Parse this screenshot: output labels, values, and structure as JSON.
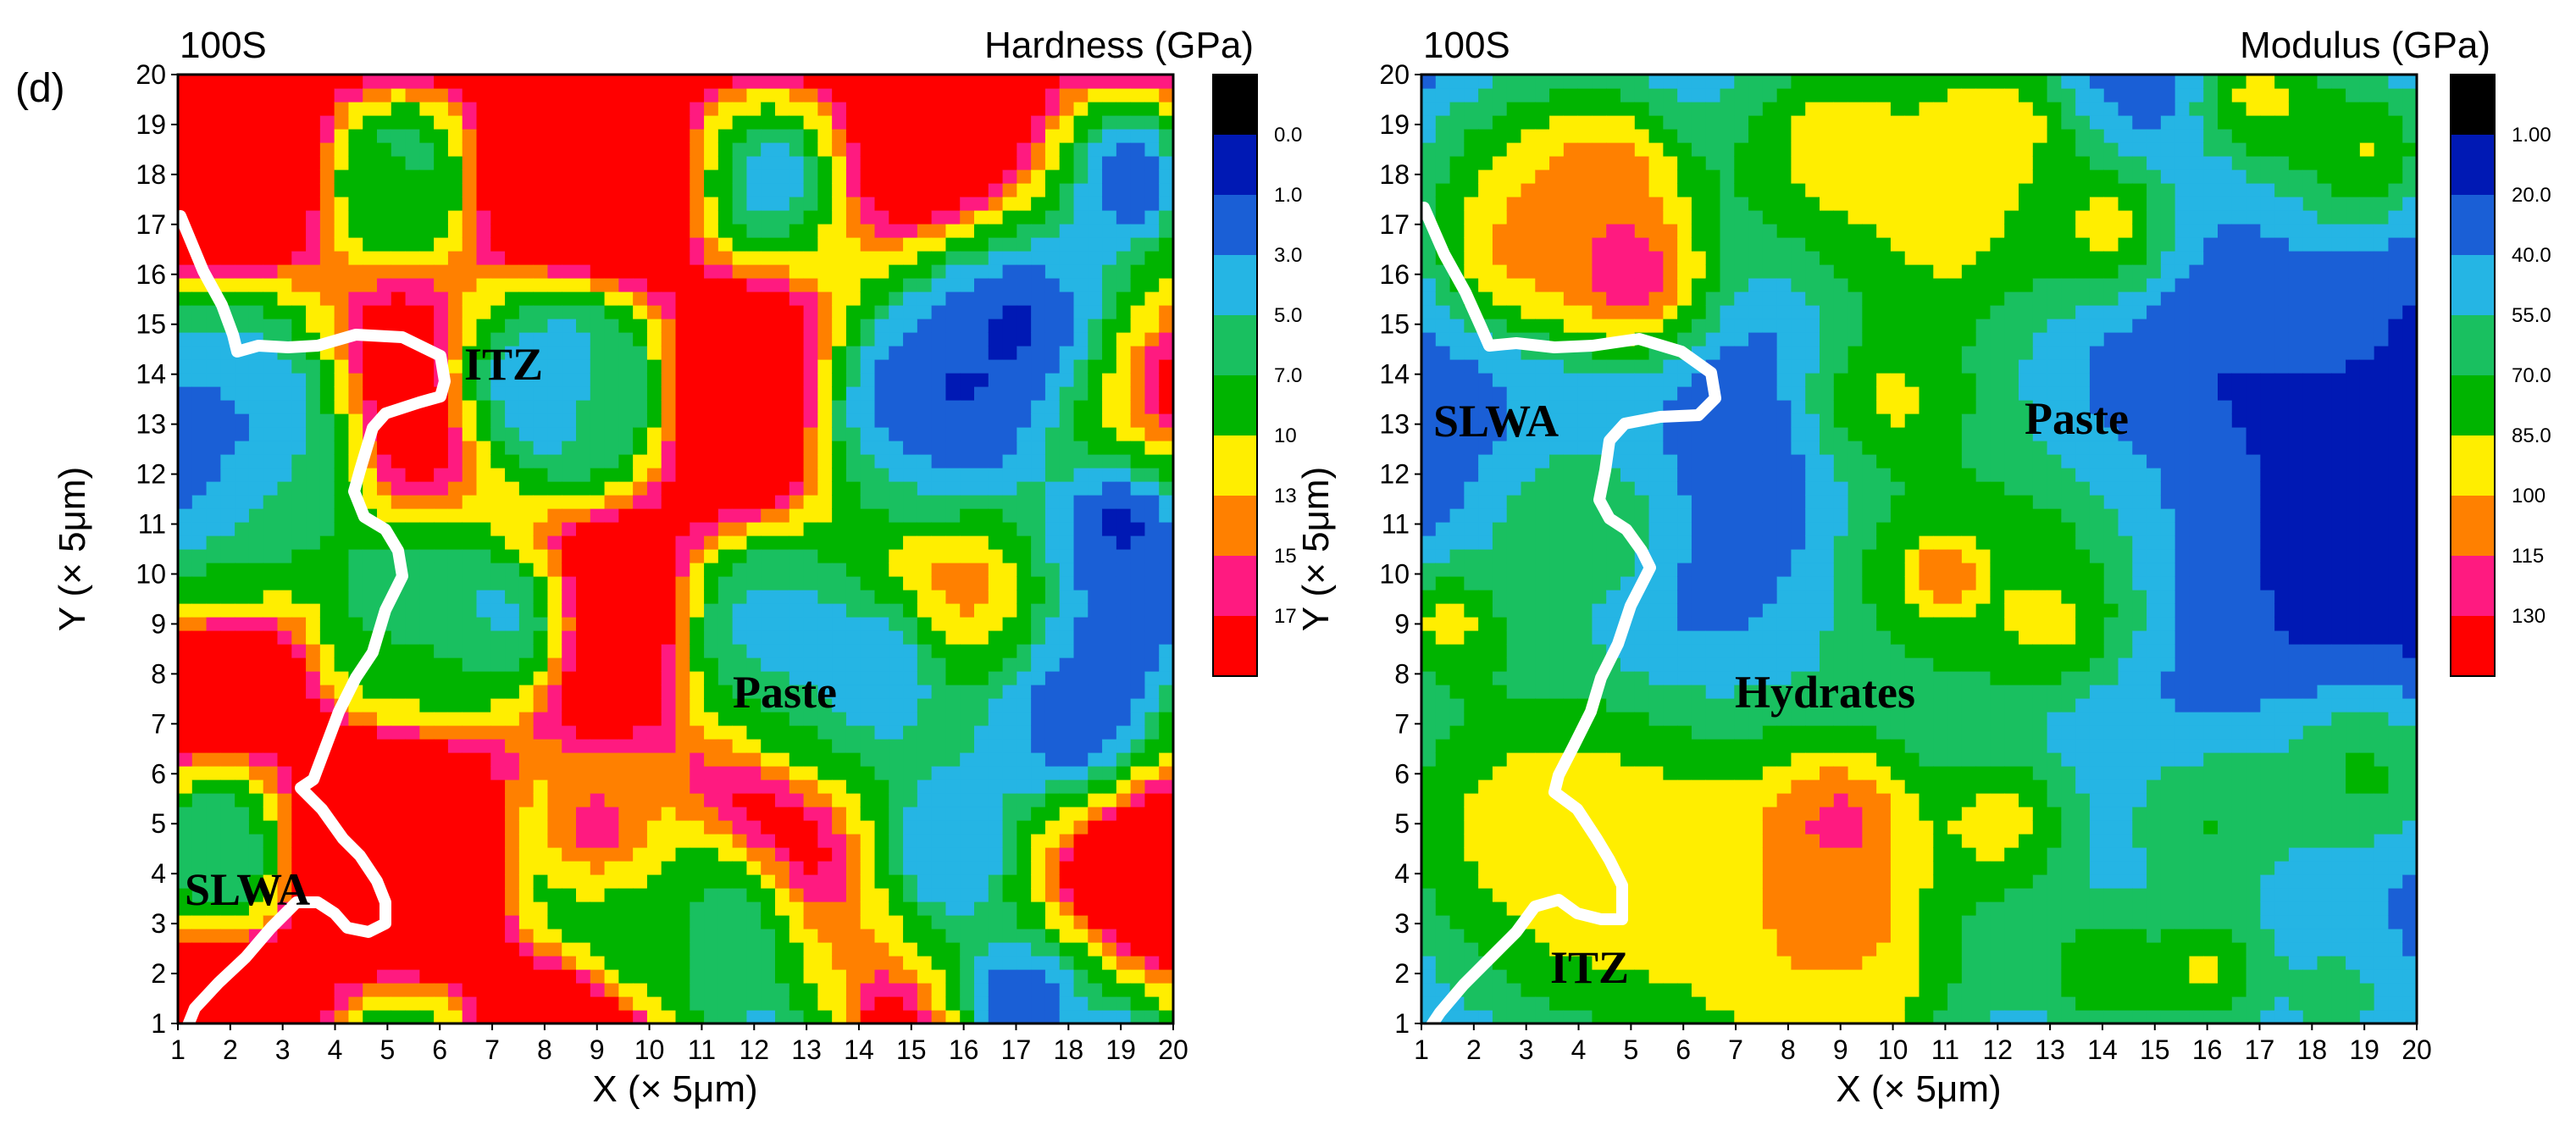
{
  "figure": {
    "panel_label": "(d)"
  },
  "chart_data": [
    {
      "type": "heatmap",
      "subtype": "filled-contour",
      "sample": "100S",
      "title": "Hardness (GPa)",
      "xlabel": "X (× 5μm)",
      "ylabel": "Y (× 5μm)",
      "xlim": [
        1,
        20
      ],
      "ylim": [
        1,
        20
      ],
      "x_ticks": [
        "1",
        "2",
        "3",
        "4",
        "5",
        "6",
        "7",
        "8",
        "9",
        "10",
        "11",
        "12",
        "13",
        "14",
        "15",
        "16",
        "17",
        "18",
        "19",
        "20"
      ],
      "y_ticks": [
        "1",
        "2",
        "3",
        "4",
        "5",
        "6",
        "7",
        "8",
        "9",
        "10",
        "11",
        "12",
        "13",
        "14",
        "15",
        "16",
        "17",
        "18",
        "19",
        "20"
      ],
      "colorbar": {
        "labels": [
          "0.0",
          "1.0",
          "3.0",
          "5.0",
          "7.0",
          "10",
          "13",
          "15",
          "17"
        ],
        "colors": [
          "#000000",
          "#0019b4",
          "#1a5fd6",
          "#25b5e4",
          "#19c060",
          "#00b400",
          "#ffee00",
          "#ff8000",
          "#ff1a80",
          "#ff0000"
        ]
      },
      "thresholds": [
        0,
        1,
        3,
        5,
        7,
        10,
        13,
        15,
        17
      ],
      "annotations": [
        "ITZ",
        "Paste",
        "SLWA"
      ],
      "boundary_line": "white",
      "grid": false
    },
    {
      "type": "heatmap",
      "subtype": "filled-contour",
      "sample": "100S",
      "title": "Modulus (GPa)",
      "xlabel": "X (× 5μm)",
      "ylabel": "Y (× 5μm)",
      "xlim": [
        1,
        20
      ],
      "ylim": [
        1,
        20
      ],
      "x_ticks": [
        "1",
        "2",
        "3",
        "4",
        "5",
        "6",
        "7",
        "8",
        "9",
        "10",
        "11",
        "12",
        "13",
        "14",
        "15",
        "16",
        "17",
        "18",
        "19",
        "20"
      ],
      "y_ticks": [
        "1",
        "2",
        "3",
        "4",
        "5",
        "6",
        "7",
        "8",
        "9",
        "10",
        "11",
        "12",
        "13",
        "14",
        "15",
        "16",
        "17",
        "18",
        "19",
        "20"
      ],
      "colorbar": {
        "labels": [
          "1.00",
          "20.0",
          "40.0",
          "55.0",
          "70.0",
          "85.0",
          "100",
          "115",
          "130"
        ],
        "colors": [
          "#000000",
          "#0019b4",
          "#1a5fd6",
          "#25b5e4",
          "#19c060",
          "#00b400",
          "#ffee00",
          "#ff8000",
          "#ff1a80",
          "#ff0000"
        ]
      },
      "thresholds": [
        1,
        20,
        40,
        55,
        70,
        85,
        100,
        115,
        130
      ],
      "annotations": [
        "SLWA",
        "Paste",
        "Hydrates",
        "ITZ"
      ],
      "boundary_line": "white",
      "grid": false
    }
  ]
}
